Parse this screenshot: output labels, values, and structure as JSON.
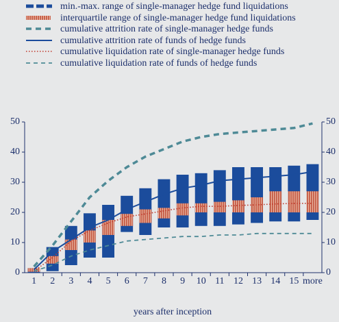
{
  "chart_data": {
    "type": "range-line",
    "categories": [
      "1",
      "2",
      "3",
      "4",
      "5",
      "6",
      "7",
      "8",
      "9",
      "10",
      "11",
      "12",
      "13",
      "14",
      "15",
      "more"
    ],
    "xlabel": "years after inception",
    "ylim": [
      0,
      50
    ],
    "yticks": [
      0,
      10,
      20,
      30,
      40,
      50
    ],
    "y2lim": [
      0,
      50
    ],
    "y2ticks": [
      0,
      10,
      20,
      30,
      40,
      50
    ],
    "series": [
      {
        "name": "min.-max. range of single-manager hedge fund liquidations",
        "style": "range",
        "color": "#1b4c9c",
        "low": [
          0,
          0.5,
          2.5,
          5,
          5,
          13.5,
          12.5,
          15,
          15,
          15.5,
          15.5,
          16,
          16.5,
          17,
          17,
          17.5
        ],
        "high": [
          1.5,
          8.5,
          15.5,
          19.7,
          22.5,
          25.5,
          28,
          31,
          32.5,
          33,
          34,
          35,
          35,
          35,
          35.5,
          36
        ]
      },
      {
        "name": "interquartile range of single-manager hedge fund liquidations",
        "style": "range",
        "pattern": "stripes",
        "color": "#d2765f",
        "low": [
          0.3,
          3,
          7.5,
          10,
          12.5,
          15.5,
          16.5,
          18,
          19,
          20,
          20,
          20,
          20,
          20,
          20,
          20
        ],
        "high": [
          1.5,
          5.5,
          11,
          14,
          17.5,
          19.5,
          21,
          21.5,
          23,
          23,
          23.5,
          24,
          25,
          27,
          27,
          27
        ]
      },
      {
        "name": "cumulative attrition rate of single-manager hedge funds",
        "style": "line",
        "color": "#4e8a96",
        "dash": "8,6",
        "width": 3.5,
        "values": [
          2,
          9,
          17,
          25,
          30.5,
          35,
          38.5,
          41,
          43.5,
          45,
          46,
          46.5,
          47,
          47.5,
          48,
          49.5
        ]
      },
      {
        "name": "cumulative attrition rate of funds of hedge funds",
        "style": "line",
        "color": "#1b4c9c",
        "width": 2,
        "values": [
          1,
          7,
          11,
          15,
          17.5,
          21,
          23.5,
          26,
          28,
          29,
          30.5,
          31,
          31.5,
          32,
          32.5,
          33.5
        ]
      },
      {
        "name": "cumulative liquidation rate of single-manager hedge funds",
        "style": "line",
        "color": "#c0392b",
        "dash": "1.5,2.5",
        "width": 1.6,
        "values": [
          0.5,
          5,
          10.5,
          14,
          16.5,
          18.5,
          19.5,
          20.5,
          21.5,
          22,
          22,
          22.3,
          22.5,
          22.8,
          23,
          23
        ]
      },
      {
        "name": "cumulative liquidation rate of funds of hedge funds",
        "style": "line",
        "color": "#4e8a96",
        "dash": "6,5",
        "width": 1.8,
        "values": [
          0.5,
          2.5,
          5.5,
          7.5,
          9,
          10.5,
          11,
          11.5,
          12,
          12,
          12.5,
          12.5,
          13,
          13,
          13,
          13
        ]
      }
    ]
  }
}
